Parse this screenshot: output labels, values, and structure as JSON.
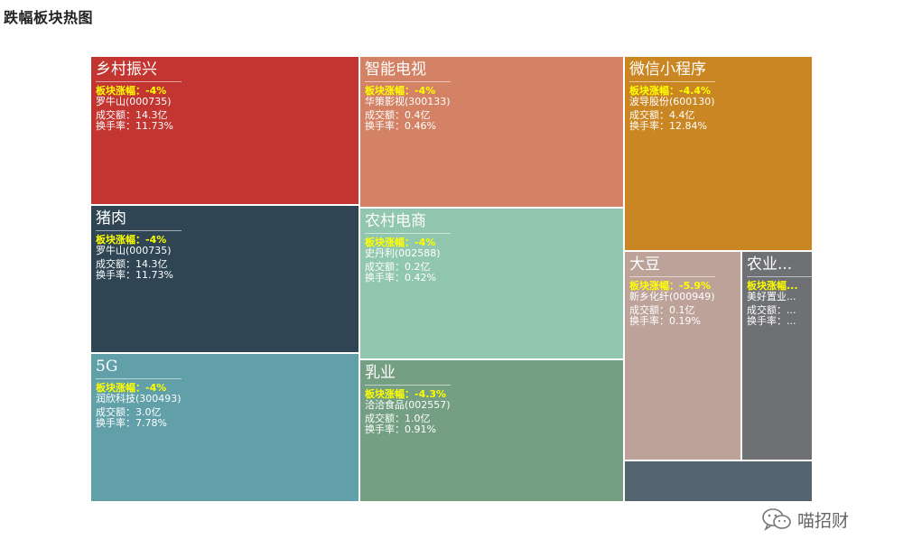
{
  "page": {
    "title": "跌幅板块热图"
  },
  "watermark": {
    "text": "喵招财",
    "icon": "wechat-icon"
  },
  "labels": {
    "change_prefix": "板块涨幅：",
    "volume_prefix": "成交额：",
    "turnover_prefix": "换手率：",
    "volume_unit": "亿"
  },
  "chart_data": {
    "type": "treemap",
    "title": "跌幅板块热图",
    "items": [
      {
        "name": "乡村振兴",
        "change_pct": -4,
        "stock": "罗牛山(000735)",
        "volume_yi": 14.3,
        "turnover_pct": 11.73,
        "color": "#c23531",
        "lines": {
          "change": "板块涨幅：-4%",
          "stock": "罗牛山(000735)",
          "volume": "成交额：14.3亿",
          "turnover": "换手率：11.73%"
        }
      },
      {
        "name": "猪肉",
        "change_pct": -4,
        "stock": "罗牛山(000735)",
        "volume_yi": 14.3,
        "turnover_pct": 11.73,
        "color": "#2f4554",
        "lines": {
          "change": "板块涨幅：-4%",
          "stock": "罗牛山(000735)",
          "volume": "成交额：14.3亿",
          "turnover": "换手率：11.73%"
        }
      },
      {
        "name": "5G",
        "change_pct": -4,
        "stock": "润欣科技(300493)",
        "volume_yi": 3.0,
        "turnover_pct": 7.78,
        "color": "#61a0a8",
        "lines": {
          "change": "板块涨幅：-4%",
          "stock": "润欣科技(300493)",
          "volume": "成交额：3.0亿",
          "turnover": "换手率：7.78%"
        }
      },
      {
        "name": "智能电视",
        "change_pct": -4,
        "stock": "华策影视(300133)",
        "volume_yi": 0.4,
        "turnover_pct": 0.46,
        "color": "#d48265",
        "lines": {
          "change": "板块涨幅：-4%",
          "stock": "华策影视(300133)",
          "volume": "成交额：0.4亿",
          "turnover": "换手率：0.46%"
        }
      },
      {
        "name": "农村电商",
        "change_pct": -4,
        "stock": "史丹利(002588)",
        "volume_yi": 0.2,
        "turnover_pct": 0.42,
        "color": "#91c7ae",
        "lines": {
          "change": "板块涨幅：-4%",
          "stock": "史丹利(002588)",
          "volume": "成交额：0.2亿",
          "turnover": "换手率：0.42%"
        }
      },
      {
        "name": "乳业",
        "change_pct": -4.3,
        "stock": "洽洽食品(002557)",
        "volume_yi": 1.0,
        "turnover_pct": 0.91,
        "color": "#749f83",
        "lines": {
          "change": "板块涨幅：-4.3%",
          "stock": "洽洽食品(002557)",
          "volume": "成交额：1.0亿",
          "turnover": "换手率：0.91%"
        }
      },
      {
        "name": "微信小程序",
        "change_pct": -4.4,
        "stock": "波导股份(600130)",
        "volume_yi": 4.4,
        "turnover_pct": 12.84,
        "color": "#ca8622",
        "lines": {
          "change": "板块涨幅：-4.4%",
          "stock": "波导股份(600130)",
          "volume": "成交额：4.4亿",
          "turnover": "换手率：12.84%"
        }
      },
      {
        "name": "大豆",
        "change_pct": -5.9,
        "stock": "新乡化纤(000949)",
        "volume_yi": 0.1,
        "turnover_pct": 0.19,
        "color": "#bda29a",
        "lines": {
          "change": "板块涨幅：-5.9%",
          "stock": "新乡化纤(000949)",
          "volume": "成交额：0.1亿",
          "turnover": "换手率：0.19%"
        }
      },
      {
        "name": "农业...",
        "color": "#6e7074",
        "lines": {
          "change": "板块涨幅...",
          "stock": "美好置业...",
          "volume": "成交额：...",
          "turnover": "换手率：..."
        }
      },
      {
        "name": "",
        "color": "#546570",
        "lines": {
          "change": "",
          "stock": "",
          "volume": "",
          "turnover": ""
        }
      }
    ]
  }
}
